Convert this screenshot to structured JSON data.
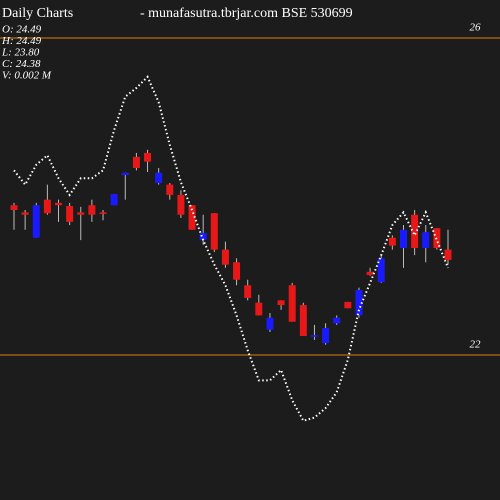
{
  "chart_data": {
    "type": "candlestick",
    "title": "Daily Charts",
    "subtitle": "- munafasutra.tbrjar.com  BSE 530699",
    "info": [
      "O: 24.49",
      "H: 24.49",
      "L: 23.80",
      "C: 24.38",
      "V: 0.002  M"
    ],
    "ylim": [
      20.17,
      26.48
    ],
    "yticks": [
      26,
      22
    ],
    "grid": true,
    "grid_color": "#e07b10",
    "up_color": "#1a1aff",
    "down_color": "#e81818",
    "open": [
      23.89,
      23.8,
      23.48,
      23.96,
      23.92,
      23.88,
      23.8,
      23.89,
      23.8,
      23.89,
      24.27,
      24.5,
      24.55,
      24.17,
      24.15,
      24.02,
      23.89,
      23.45,
      23.79,
      23.33,
      23.17,
      22.88,
      22.66,
      22.32,
      22.69,
      22.88,
      22.63,
      22.23,
      22.15,
      22.4,
      22.67,
      22.5,
      23.05,
      22.92,
      23.48,
      23.35,
      23.77,
      23.35,
      23.6,
      23.33
    ],
    "high": [
      23.92,
      23.83,
      23.92,
      24.15,
      23.96,
      23.92,
      23.87,
      23.96,
      23.83,
      24.03,
      24.3,
      24.55,
      24.59,
      24.36,
      24.17,
      24.08,
      23.89,
      23.77,
      23.79,
      23.43,
      23.22,
      22.95,
      22.76,
      22.53,
      22.69,
      22.91,
      22.66,
      22.38,
      22.4,
      22.5,
      22.67,
      22.85,
      23.1,
      23.26,
      23.51,
      23.64,
      23.83,
      23.64,
      23.6,
      23.58
    ],
    "low": [
      23.58,
      23.58,
      23.48,
      23.77,
      23.68,
      23.64,
      23.45,
      23.68,
      23.7,
      23.89,
      23.96,
      24.33,
      24.31,
      24.15,
      23.96,
      23.73,
      23.58,
      23.39,
      23.3,
      23.1,
      22.88,
      22.69,
      22.5,
      22.29,
      22.57,
      22.42,
      22.24,
      22.19,
      22.13,
      22.38,
      22.59,
      22.47,
      23.0,
      22.91,
      23.33,
      23.1,
      23.26,
      23.17,
      23.33,
      23.14
    ],
    "close": [
      23.83,
      23.77,
      23.89,
      23.79,
      23.89,
      23.68,
      23.77,
      23.77,
      23.78,
      24.03,
      24.3,
      24.36,
      24.44,
      24.3,
      24.02,
      23.77,
      23.58,
      23.54,
      23.33,
      23.14,
      22.95,
      22.72,
      22.5,
      22.47,
      22.63,
      22.42,
      22.24,
      22.25,
      22.34,
      22.47,
      22.59,
      22.82,
      23.01,
      23.22,
      23.38,
      23.58,
      23.35,
      23.55,
      23.35,
      23.2
    ],
    "ma": {
      "color": "#ffffff",
      "values": [
        24.33,
        24.15,
        24.4,
        24.52,
        24.23,
        24.02,
        24.23,
        24.23,
        24.33,
        24.84,
        25.26,
        25.37,
        25.51,
        25.19,
        24.65,
        24.18,
        23.83,
        23.45,
        23.14,
        22.88,
        22.5,
        22.06,
        21.68,
        21.68,
        21.81,
        21.43,
        21.17,
        21.21,
        21.33,
        21.53,
        21.94,
        22.57,
        22.91,
        23.26,
        23.64,
        23.8,
        23.51,
        23.8,
        23.45,
        23.1
      ]
    }
  }
}
